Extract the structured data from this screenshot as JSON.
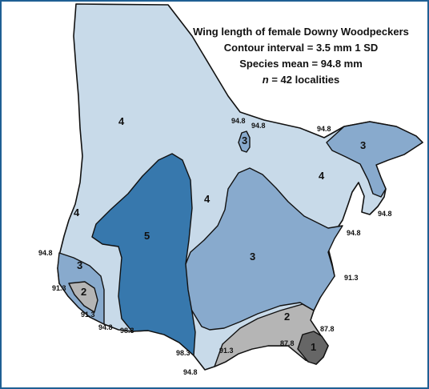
{
  "title": {
    "line1": "Wing length of female Downy Woodpeckers",
    "line2": "Contour interval = 3.5 mm  1 SD",
    "line3": "Species mean = 94.8 mm",
    "line4_var": "n",
    "line4_rest": " = 42 localities"
  },
  "colors": {
    "frame": "#1f5f94",
    "zone1": "#666666",
    "zone2": "#b5b5b5",
    "zone3": "#88aacd",
    "zone4": "#c8dae9",
    "zone5": "#3778ad",
    "outline": "#111111"
  },
  "zones": {
    "z4_nw": "4",
    "z4_ne": "4",
    "z4_w": "4",
    "z4_c": "4",
    "z3_lake": "3",
    "z3_que": "3",
    "z5": "5",
    "z3_se": "3",
    "z3_sw": "3",
    "z2_sw": "2",
    "z2_se": "2",
    "z1": "1"
  },
  "isolines": {
    "a": "94.8",
    "b": "94.8",
    "c": "94.8",
    "d": "94.8",
    "e": "94.8",
    "f": "94.8",
    "g": "91.3",
    "h": "91.3",
    "i": "94.8",
    "j": "98.3",
    "k": "98.3",
    "l": "94.8",
    "m": "91.3",
    "n": "87.8",
    "o": "87.8",
    "p": "91.3"
  }
}
